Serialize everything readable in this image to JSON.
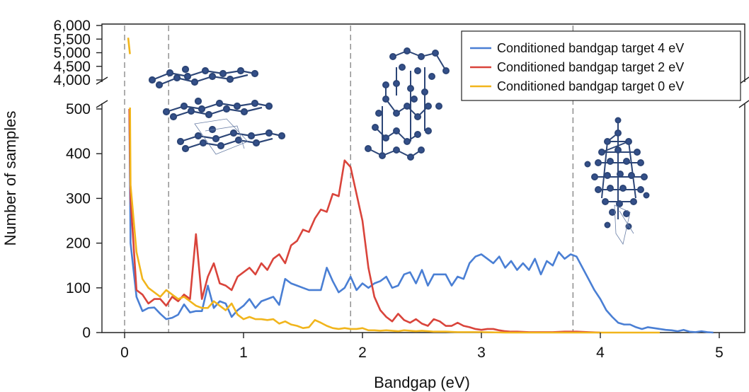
{
  "chart_data": {
    "type": "line",
    "xlabel": "Bandgap (eV)",
    "ylabel": "Number of samples",
    "xlim": [
      -0.1,
      5.2
    ],
    "x_ticks": [
      "0",
      "1",
      "2",
      "3",
      "4",
      "5"
    ],
    "y_ticks_lower": [
      "0",
      "100",
      "200",
      "300",
      "400",
      "500"
    ],
    "y_ticks_upper": [
      "4,000",
      "4,500",
      "5,000",
      "5,500",
      "6,000"
    ],
    "ylim_lower": [
      0,
      500
    ],
    "ylim_upper": [
      4000,
      6000
    ],
    "axis_break": true,
    "reference_lines_x": [
      0.0,
      0.37,
      1.9,
      3.77
    ],
    "legend_position": "top-right",
    "series": [
      {
        "name": "Conditioned bandgap target 4 eV",
        "color": "#4a7fd4",
        "points": [
          [
            0.04,
            500
          ],
          [
            0.05,
            200
          ],
          [
            0.1,
            80
          ],
          [
            0.15,
            48
          ],
          [
            0.2,
            55
          ],
          [
            0.25,
            56
          ],
          [
            0.3,
            42
          ],
          [
            0.35,
            30
          ],
          [
            0.4,
            33
          ],
          [
            0.45,
            40
          ],
          [
            0.5,
            63
          ],
          [
            0.55,
            45
          ],
          [
            0.6,
            48
          ],
          [
            0.65,
            48
          ],
          [
            0.7,
            105
          ],
          [
            0.75,
            55
          ],
          [
            0.8,
            70
          ],
          [
            0.85,
            65
          ],
          [
            0.9,
            35
          ],
          [
            0.95,
            50
          ],
          [
            1.0,
            60
          ],
          [
            1.05,
            75
          ],
          [
            1.1,
            55
          ],
          [
            1.15,
            70
          ],
          [
            1.2,
            75
          ],
          [
            1.25,
            80
          ],
          [
            1.3,
            62
          ],
          [
            1.35,
            120
          ],
          [
            1.4,
            110
          ],
          [
            1.45,
            105
          ],
          [
            1.5,
            100
          ],
          [
            1.55,
            95
          ],
          [
            1.6,
            95
          ],
          [
            1.65,
            95
          ],
          [
            1.7,
            145
          ],
          [
            1.75,
            115
          ],
          [
            1.8,
            90
          ],
          [
            1.85,
            100
          ],
          [
            1.9,
            125
          ],
          [
            1.95,
            95
          ],
          [
            2.0,
            110
          ],
          [
            2.05,
            100
          ],
          [
            2.1,
            110
          ],
          [
            2.15,
            115
          ],
          [
            2.2,
            125
          ],
          [
            2.25,
            100
          ],
          [
            2.3,
            105
          ],
          [
            2.35,
            130
          ],
          [
            2.4,
            135
          ],
          [
            2.45,
            110
          ],
          [
            2.5,
            140
          ],
          [
            2.55,
            105
          ],
          [
            2.6,
            130
          ],
          [
            2.65,
            130
          ],
          [
            2.7,
            130
          ],
          [
            2.75,
            105
          ],
          [
            2.8,
            125
          ],
          [
            2.85,
            120
          ],
          [
            2.9,
            155
          ],
          [
            2.95,
            170
          ],
          [
            3.0,
            175
          ],
          [
            3.05,
            165
          ],
          [
            3.1,
            155
          ],
          [
            3.15,
            170
          ],
          [
            3.2,
            145
          ],
          [
            3.25,
            160
          ],
          [
            3.3,
            140
          ],
          [
            3.35,
            155
          ],
          [
            3.4,
            140
          ],
          [
            3.45,
            165
          ],
          [
            3.5,
            130
          ],
          [
            3.55,
            160
          ],
          [
            3.6,
            150
          ],
          [
            3.65,
            180
          ],
          [
            3.7,
            165
          ],
          [
            3.75,
            175
          ],
          [
            3.8,
            170
          ],
          [
            3.85,
            145
          ],
          [
            3.9,
            120
          ],
          [
            3.95,
            95
          ],
          [
            4.0,
            75
          ],
          [
            4.05,
            50
          ],
          [
            4.1,
            35
          ],
          [
            4.15,
            22
          ],
          [
            4.2,
            18
          ],
          [
            4.25,
            18
          ],
          [
            4.3,
            12
          ],
          [
            4.35,
            8
          ],
          [
            4.4,
            12
          ],
          [
            4.45,
            10
          ],
          [
            4.5,
            8
          ],
          [
            4.55,
            6
          ],
          [
            4.6,
            5
          ],
          [
            4.65,
            3
          ],
          [
            4.7,
            6
          ],
          [
            4.75,
            2
          ],
          [
            4.8,
            1
          ],
          [
            4.85,
            3
          ],
          [
            4.9,
            1
          ],
          [
            4.95,
            0
          ]
        ]
      },
      {
        "name": "Conditioned bandgap target 2 eV",
        "color": "#d9443b",
        "points": [
          [
            0.04,
            500
          ],
          [
            0.05,
            300
          ],
          [
            0.1,
            95
          ],
          [
            0.15,
            85
          ],
          [
            0.2,
            65
          ],
          [
            0.25,
            75
          ],
          [
            0.3,
            75
          ],
          [
            0.35,
            60
          ],
          [
            0.4,
            80
          ],
          [
            0.45,
            70
          ],
          [
            0.5,
            85
          ],
          [
            0.55,
            75
          ],
          [
            0.6,
            220
          ],
          [
            0.65,
            75
          ],
          [
            0.7,
            125
          ],
          [
            0.75,
            155
          ],
          [
            0.8,
            110
          ],
          [
            0.85,
            105
          ],
          [
            0.9,
            95
          ],
          [
            0.95,
            125
          ],
          [
            1.0,
            135
          ],
          [
            1.05,
            145
          ],
          [
            1.1,
            130
          ],
          [
            1.15,
            155
          ],
          [
            1.2,
            140
          ],
          [
            1.25,
            165
          ],
          [
            1.3,
            175
          ],
          [
            1.35,
            155
          ],
          [
            1.4,
            195
          ],
          [
            1.45,
            205
          ],
          [
            1.5,
            230
          ],
          [
            1.55,
            225
          ],
          [
            1.6,
            255
          ],
          [
            1.65,
            275
          ],
          [
            1.7,
            270
          ],
          [
            1.75,
            310
          ],
          [
            1.8,
            305
          ],
          [
            1.85,
            385
          ],
          [
            1.9,
            370
          ],
          [
            1.95,
            310
          ],
          [
            2.0,
            250
          ],
          [
            2.05,
            145
          ],
          [
            2.1,
            80
          ],
          [
            2.15,
            50
          ],
          [
            2.2,
            35
          ],
          [
            2.25,
            25
          ],
          [
            2.3,
            42
          ],
          [
            2.35,
            28
          ],
          [
            2.4,
            22
          ],
          [
            2.45,
            30
          ],
          [
            2.5,
            20
          ],
          [
            2.55,
            15
          ],
          [
            2.6,
            30
          ],
          [
            2.65,
            25
          ],
          [
            2.7,
            15
          ],
          [
            2.75,
            15
          ],
          [
            2.8,
            22
          ],
          [
            2.85,
            15
          ],
          [
            2.9,
            12
          ],
          [
            2.95,
            8
          ],
          [
            3.0,
            6
          ],
          [
            3.05,
            8
          ],
          [
            3.1,
            8
          ],
          [
            3.15,
            5
          ],
          [
            3.2,
            3
          ],
          [
            3.25,
            2
          ],
          [
            3.3,
            2
          ],
          [
            3.4,
            1
          ],
          [
            3.5,
            1
          ],
          [
            3.6,
            1
          ],
          [
            3.7,
            2
          ],
          [
            3.8,
            2
          ],
          [
            3.9,
            1
          ],
          [
            4.0,
            0
          ]
        ]
      },
      {
        "name": "Conditioned bandgap target 0 eV",
        "color": "#f1b51c",
        "points": [
          [
            0.03,
            5550
          ],
          [
            0.045,
            4950
          ],
          [
            0.05,
            330
          ],
          [
            0.1,
            180
          ],
          [
            0.15,
            120
          ],
          [
            0.2,
            100
          ],
          [
            0.25,
            90
          ],
          [
            0.3,
            80
          ],
          [
            0.35,
            95
          ],
          [
            0.4,
            85
          ],
          [
            0.45,
            75
          ],
          [
            0.5,
            80
          ],
          [
            0.55,
            70
          ],
          [
            0.6,
            60
          ],
          [
            0.65,
            55
          ],
          [
            0.7,
            55
          ],
          [
            0.75,
            70
          ],
          [
            0.8,
            60
          ],
          [
            0.85,
            50
          ],
          [
            0.9,
            65
          ],
          [
            0.95,
            40
          ],
          [
            1.0,
            30
          ],
          [
            1.05,
            35
          ],
          [
            1.1,
            30
          ],
          [
            1.15,
            30
          ],
          [
            1.2,
            28
          ],
          [
            1.25,
            30
          ],
          [
            1.3,
            20
          ],
          [
            1.35,
            25
          ],
          [
            1.4,
            18
          ],
          [
            1.45,
            15
          ],
          [
            1.5,
            10
          ],
          [
            1.55,
            12
          ],
          [
            1.6,
            28
          ],
          [
            1.65,
            22
          ],
          [
            1.7,
            15
          ],
          [
            1.75,
            10
          ],
          [
            1.8,
            8
          ],
          [
            1.85,
            10
          ],
          [
            1.9,
            8
          ],
          [
            1.95,
            8
          ],
          [
            2.0,
            10
          ],
          [
            2.05,
            5
          ],
          [
            2.1,
            5
          ],
          [
            2.15,
            4
          ],
          [
            2.2,
            5
          ],
          [
            2.25,
            4
          ],
          [
            2.3,
            3
          ],
          [
            2.35,
            5
          ],
          [
            2.4,
            4
          ],
          [
            2.45,
            3
          ],
          [
            2.5,
            4
          ],
          [
            2.55,
            3
          ],
          [
            2.6,
            2
          ],
          [
            2.7,
            2
          ],
          [
            2.8,
            1
          ],
          [
            2.9,
            1
          ],
          [
            3.0,
            1
          ],
          [
            3.2,
            0
          ],
          [
            3.5,
            0
          ],
          [
            4.0,
            0
          ],
          [
            4.5,
            0
          ]
        ]
      }
    ],
    "insets": [
      "layered-sheet-structure",
      "3d-framework-structure",
      "molecular-cluster-structure"
    ]
  }
}
